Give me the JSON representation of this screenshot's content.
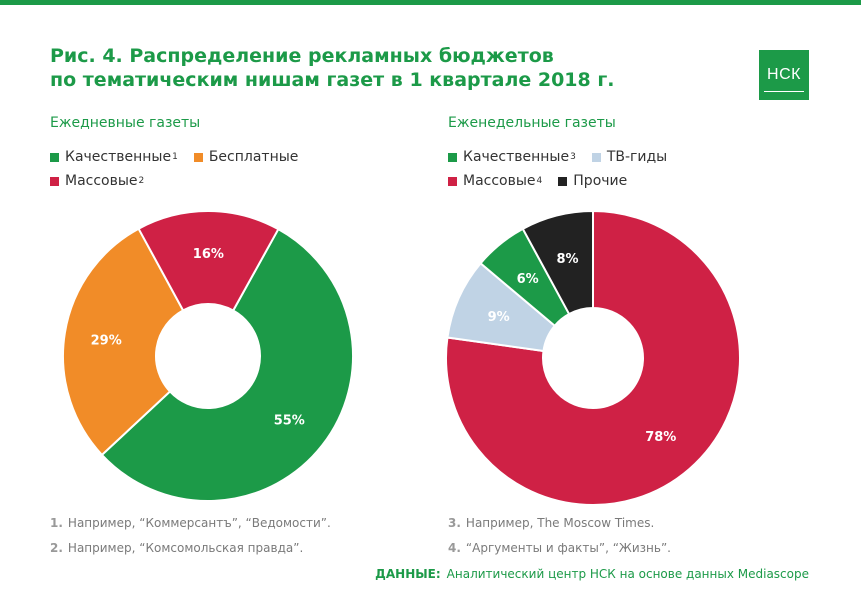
{
  "title": {
    "line1": "Рис. 4. Распределение рекламных бюджетов",
    "line2": "по тематическим нишам газет в 1 квартале 2018 г."
  },
  "logo": "НСК",
  "colors": {
    "green": "#1c9a48",
    "orange": "#f18c28",
    "red": "#cf2145",
    "lightblue": "#c0d3e5",
    "black": "#222222"
  },
  "chart_data": [
    {
      "type": "pie",
      "title": "Ежедневные газеты",
      "legend": [
        {
          "label": "Качественные",
          "sup": "1",
          "color": "#1c9a48"
        },
        {
          "label": "Бесплатные",
          "sup": "",
          "color": "#f18c28"
        },
        {
          "label": "Массовые",
          "sup": "2",
          "color": "#cf2145"
        }
      ],
      "slices": [
        {
          "name": "Качественные",
          "value": 55,
          "label": "55%",
          "color": "#1c9a48"
        },
        {
          "name": "Бесплатные",
          "value": 29,
          "label": "29%",
          "color": "#f18c28"
        },
        {
          "name": "Массовые",
          "value": 16,
          "label": "16%",
          "color": "#cf2145"
        }
      ],
      "notes": [
        {
          "num": "1.",
          "text": "Например, “Коммерсантъ”, “Ведомости”."
        },
        {
          "num": "2.",
          "text": "Например, “Комсомольская правда”."
        }
      ]
    },
    {
      "type": "pie",
      "title": "Еженедельные газеты",
      "legend": [
        {
          "label": "Качественные",
          "sup": "3",
          "color": "#1c9a48"
        },
        {
          "label": "ТВ-гиды",
          "sup": "",
          "color": "#c0d3e5"
        },
        {
          "label": "Массовые",
          "sup": "4",
          "color": "#cf2145"
        },
        {
          "label": "Прочие",
          "sup": "",
          "color": "#222222"
        }
      ],
      "slices": [
        {
          "name": "Массовые",
          "value": 78,
          "label": "78%",
          "color": "#cf2145"
        },
        {
          "name": "ТВ-гиды",
          "value": 9,
          "label": "9%",
          "color": "#c0d3e5"
        },
        {
          "name": "Качественные",
          "value": 6,
          "label": "6%",
          "color": "#1c9a48"
        },
        {
          "name": "Прочие",
          "value": 8,
          "label": "8%",
          "color": "#222222"
        }
      ],
      "notes": [
        {
          "num": "3.",
          "text": "Например, The Moscow Times."
        },
        {
          "num": "4.",
          "text": "“Аргументы и факты”, “Жизнь”."
        }
      ]
    }
  ],
  "source": {
    "label": "ДАННЫЕ:",
    "text": "Аналитический центр НСК на основе данных Mediascope"
  }
}
